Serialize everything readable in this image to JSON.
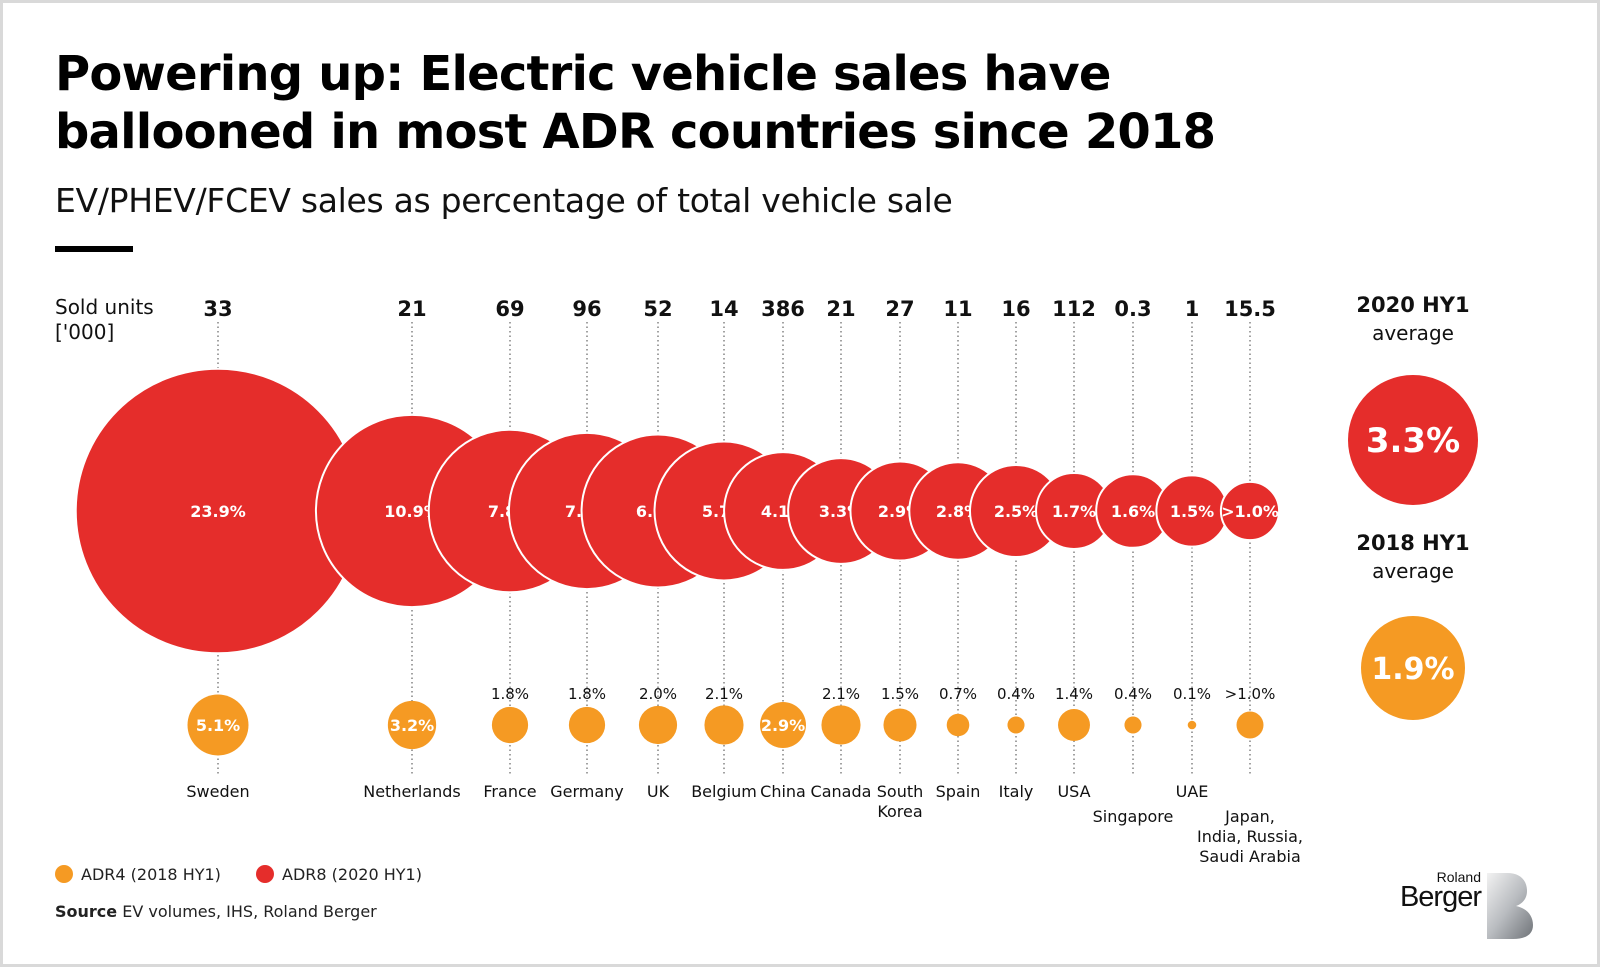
{
  "title": "Powering up: Electric vehicle sales have ballooned in most ADR countries since 2018",
  "subtitle": "EV/PHEV/FCEV sales as percentage of total vehicle sale",
  "units_label_line1": "Sold units",
  "units_label_line2": "['000]",
  "averages": [
    {
      "period": "2020 HY1",
      "label": "average",
      "value": "3.3%",
      "color": "#e52d2b"
    },
    {
      "period": "2018 HY1",
      "label": "average",
      "value": "1.9%",
      "color": "#f59a23"
    }
  ],
  "legend": [
    {
      "label": "ADR4 (2018 HY1)",
      "color": "#f59a23"
    },
    {
      "label": "ADR8 (2020 HY1)",
      "color": "#e52d2b"
    }
  ],
  "source_label": "Source",
  "source_text": "EV volumes, IHS, Roland Berger",
  "logo": {
    "line1": "Roland",
    "line2": "Berger"
  },
  "chart_data": {
    "type": "bubble",
    "title": "Powering up: Electric vehicle sales have ballooned in most ADR countries since 2018",
    "subtitle": "EV/PHEV/FCEV sales as percentage of total vehicle sale",
    "colors": {
      "2020": "#e52d2b",
      "2018": "#f59a23"
    },
    "countries": [
      {
        "name": [
          "Sweden"
        ],
        "sold_units": "33",
        "share_2020": 23.9,
        "label_2020": "23.9%",
        "share_2018": 5.1,
        "label_2018": "5.1%"
      },
      {
        "name": [
          "Netherlands"
        ],
        "sold_units": "21",
        "share_2020": 10.9,
        "label_2020": "10.9%",
        "share_2018": 3.2,
        "label_2018": "3.2%"
      },
      {
        "name": [
          "France"
        ],
        "sold_units": "69",
        "share_2020": 7.8,
        "label_2020": "7.8%",
        "share_2018": 1.8,
        "label_2018": "1.8%"
      },
      {
        "name": [
          "Germany"
        ],
        "sold_units": "96",
        "share_2020": 7.2,
        "label_2020": "7.2%",
        "share_2018": 1.8,
        "label_2018": "1.8%"
      },
      {
        "name": [
          "UK"
        ],
        "sold_units": "52",
        "share_2020": 6.9,
        "label_2020": "6.9%",
        "share_2018": 2.0,
        "label_2018": "2.0%"
      },
      {
        "name": [
          "Belgium"
        ],
        "sold_units": "14",
        "share_2020": 5.7,
        "label_2020": "5.7%",
        "share_2018": 2.1,
        "label_2018": "2.1%"
      },
      {
        "name": [
          "China"
        ],
        "sold_units": "386",
        "share_2020": 4.1,
        "label_2020": "4.1%",
        "share_2018": 2.9,
        "label_2018": "2.9%"
      },
      {
        "name": [
          "Canada"
        ],
        "sold_units": "21",
        "share_2020": 3.3,
        "label_2020": "3.3%",
        "share_2018": 2.1,
        "label_2018": "2.1%"
      },
      {
        "name": [
          "South",
          "Korea"
        ],
        "sold_units": "27",
        "share_2020": 2.9,
        "label_2020": "2.9%",
        "share_2018": 1.5,
        "label_2018": "1.5%"
      },
      {
        "name": [
          "Spain"
        ],
        "sold_units": "11",
        "share_2020": 2.8,
        "label_2020": "2.8%",
        "share_2018": 0.7,
        "label_2018": "0.7%"
      },
      {
        "name": [
          "Italy"
        ],
        "sold_units": "16",
        "share_2020": 2.5,
        "label_2020": "2.5%",
        "share_2018": 0.4,
        "label_2018": "0.4%"
      },
      {
        "name": [
          "USA"
        ],
        "sold_units": "112",
        "share_2020": 1.7,
        "label_2020": "1.7%",
        "share_2018": 1.4,
        "label_2018": "1.4%"
      },
      {
        "name": [
          "Singapore"
        ],
        "sold_units": "0.3",
        "share_2020": 1.6,
        "label_2020": "1.6%",
        "share_2018": 0.4,
        "label_2018": "0.4%"
      },
      {
        "name": [
          "UAE"
        ],
        "sold_units": "1",
        "share_2020": 1.5,
        "label_2020": "1.5%",
        "share_2018": 0.1,
        "label_2018": "0.1%"
      },
      {
        "name": [
          "Japan,",
          "India, Russia,",
          "Saudi Arabia"
        ],
        "sold_units": "15.5",
        "share_2020": 1.0,
        "label_2020": ">1.0%",
        "share_2018": 1.0,
        "label_2018": ">1.0%"
      }
    ]
  }
}
